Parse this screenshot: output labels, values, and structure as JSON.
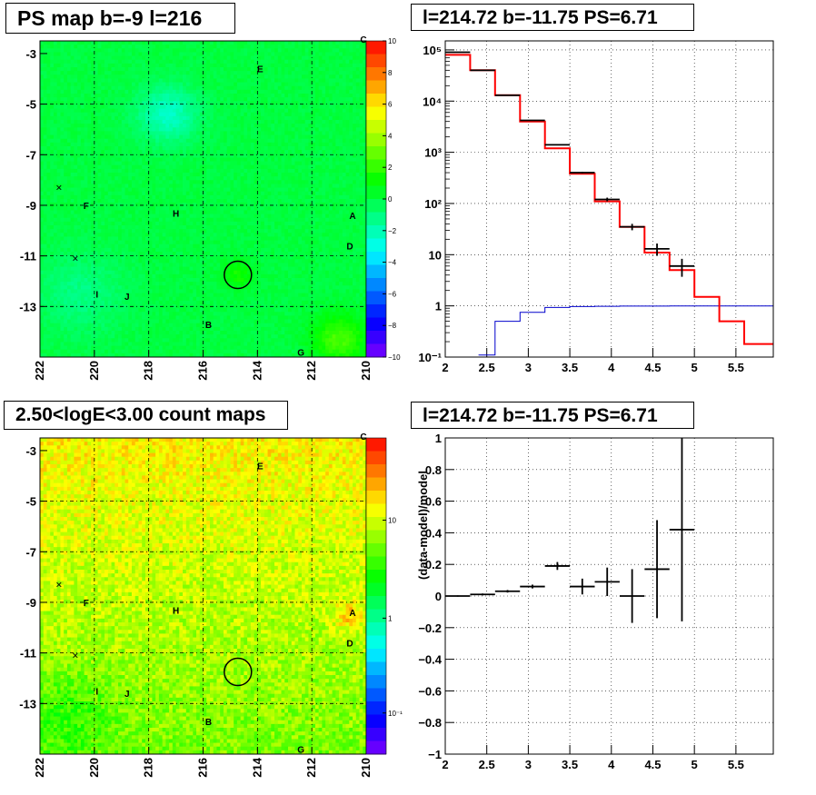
{
  "panels": {
    "tl": {
      "title": "PS map b=-9 l=216"
    },
    "tr": {
      "title": "l=214.72 b=-11.75 PS=6.71"
    },
    "bl": {
      "title": "2.50<logE<3.00 count maps"
    },
    "br": {
      "title": "l=214.72 b=-11.75 PS=6.71"
    }
  },
  "colors": {
    "data": "#000000",
    "model": "#ff0000",
    "background_model": "#0000cc",
    "grid": "#000000"
  },
  "chart_data": [
    {
      "type": "heatmap",
      "id": "ps_map",
      "title": "PS map b=-9 l=216",
      "xlim": [
        222,
        210
      ],
      "ylim": [
        -15,
        -2.5
      ],
      "x_ticks": [
        "222",
        "220",
        "218",
        "216",
        "214",
        "212",
        "210"
      ],
      "y_ticks": [
        "-3",
        "-5",
        "-7",
        "-9",
        "-11",
        "-13"
      ],
      "colorbar_ticks": [
        "10",
        "8",
        "6",
        "4",
        "2",
        "0",
        "−2",
        "−4",
        "−6",
        "−8",
        "−10"
      ],
      "colorbar_range": [
        -10,
        10
      ],
      "corner_label": "C",
      "sources": [
        {
          "label": "E",
          "l": 213.9,
          "b": -3.6
        },
        {
          "label": "F",
          "l": 220.3,
          "b": -9.0
        },
        {
          "label": "H",
          "l": 217.0,
          "b": -9.3
        },
        {
          "label": "A",
          "l": 210.5,
          "b": -9.4
        },
        {
          "label": "D",
          "l": 210.6,
          "b": -10.6
        },
        {
          "label": "I",
          "l": 219.9,
          "b": -12.5
        },
        {
          "label": "J",
          "l": 218.8,
          "b": -12.6
        },
        {
          "label": "B",
          "l": 215.8,
          "b": -13.7
        },
        {
          "label": "G",
          "l": 212.4,
          "b": -14.8
        }
      ],
      "crosses": [
        {
          "l": 221.3,
          "b": -8.3
        },
        {
          "l": 220.7,
          "b": -11.1
        }
      ],
      "circle": {
        "l": 214.72,
        "b": -11.75,
        "r_deg": 0.55
      },
      "grid": true
    },
    {
      "type": "line",
      "id": "spectrum",
      "title": "l=214.72 b=-11.75 PS=6.71",
      "xlim": [
        2,
        5.95
      ],
      "ylim": [
        0.1,
        150000
      ],
      "yscale": "log",
      "x_ticks": [
        "2",
        "2.5",
        "3",
        "3.5",
        "4",
        "4.5",
        "5",
        "5.5"
      ],
      "y_ticks": [
        "10⁻¹",
        "1",
        "10",
        "10²",
        "10³",
        "10⁴",
        "10⁵"
      ],
      "y_tick_values": [
        0.1,
        1,
        10,
        100,
        1000,
        10000,
        100000
      ],
      "series": [
        {
          "kind": "step",
          "edges": [
            2,
            2.3,
            2.6,
            2.9,
            3.2,
            3.5,
            3.8,
            4.1,
            4.4,
            4.7,
            5.0,
            5.3,
            5.6,
            5.95
          ],
          "values": [
            80000,
            40000,
            13000,
            4000,
            1200,
            380,
            110,
            35,
            11,
            5,
            1.5,
            0.5,
            0.18
          ]
        },
        {
          "kind": "step",
          "edges": [
            2.4,
            2.6,
            2.9,
            3.2,
            3.5,
            3.8,
            4.1,
            4.4,
            4.7,
            5.0,
            5.3,
            5.6,
            5.95
          ],
          "values": [
            0.11,
            0.5,
            0.75,
            0.93,
            0.97,
            0.98,
            0.99,
            0.99,
            1.0,
            1.0,
            1.0,
            1.0
          ]
        },
        {
          "kind": "points",
          "x": [
            2.15,
            2.45,
            2.75,
            3.05,
            3.35,
            3.65,
            3.95,
            4.25,
            4.55,
            4.85
          ],
          "xerr": 0.15,
          "y": [
            90000,
            40000,
            13000,
            4200,
            1400,
            400,
            120,
            35,
            13,
            6
          ],
          "yerr": [
            200,
            150,
            90,
            50,
            30,
            15,
            10,
            5,
            3.5,
            2.3
          ]
        }
      ],
      "grid": true
    },
    {
      "type": "heatmap",
      "id": "count_map",
      "title": "2.50<logE<3.00 count maps",
      "xlim": [
        222,
        210
      ],
      "ylim": [
        -15,
        -2.5
      ],
      "x_ticks": [
        "222",
        "220",
        "218",
        "216",
        "214",
        "212",
        "210"
      ],
      "y_ticks": [
        "-3",
        "-5",
        "-7",
        "-9",
        "-11",
        "-13"
      ],
      "colorbar_ticks": [
        "10",
        "1",
        "10⁻¹"
      ],
      "colorbar_scale": "log",
      "corner_label": "C",
      "grid": true
    },
    {
      "type": "scatter",
      "id": "residuals",
      "title": "l=214.72 b=-11.75 PS=6.71",
      "ylabel": "(data-model)/model",
      "xlim": [
        2,
        5.95
      ],
      "ylim": [
        -1,
        1
      ],
      "x_ticks": [
        "2",
        "2.5",
        "3",
        "3.5",
        "4",
        "4.5",
        "5",
        "5.5"
      ],
      "y_ticks": [
        "1",
        "0.8",
        "0.6",
        "0.4",
        "0.2",
        "0",
        "−0.2",
        "−0.4",
        "−0.6",
        "−0.8",
        "−1"
      ],
      "x": [
        2.15,
        2.45,
        2.75,
        3.05,
        3.35,
        3.65,
        3.95,
        4.25,
        4.55,
        4.85
      ],
      "xerr": 0.15,
      "y": [
        0.0,
        0.01,
        0.03,
        0.06,
        0.19,
        0.06,
        0.09,
        0.0,
        0.17,
        0.42
      ],
      "yerr": [
        0.004,
        0.006,
        0.008,
        0.012,
        0.025,
        0.05,
        0.09,
        0.17,
        0.31,
        0.58
      ],
      "grid": true
    }
  ]
}
